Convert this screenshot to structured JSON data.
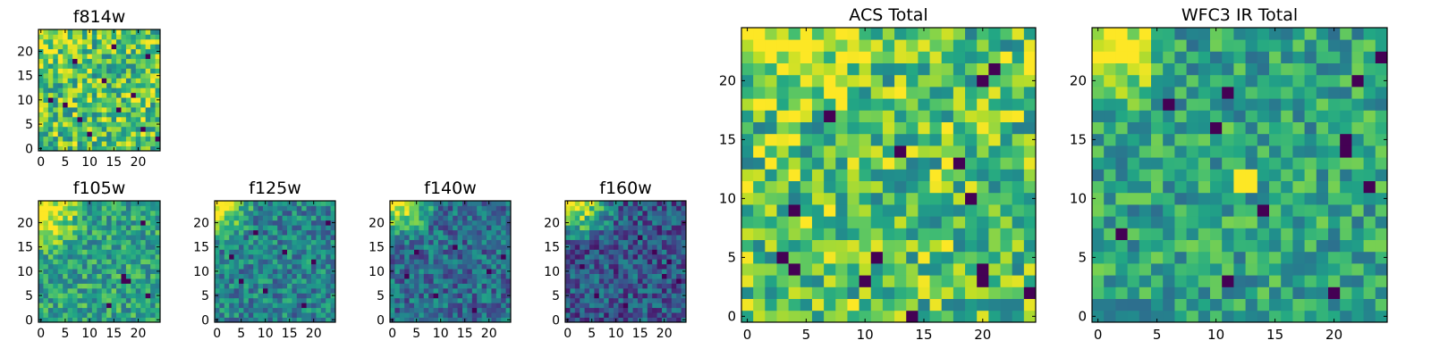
{
  "chart_data": [
    {
      "type": "heatmap",
      "title": "f814w",
      "grid_size": 25,
      "xlim": [
        0,
        24
      ],
      "ylim": [
        0,
        24
      ],
      "xticks": [
        "0",
        "5",
        "10",
        "15",
        "20"
      ],
      "yticks": [
        "0",
        "5",
        "10",
        "15",
        "20"
      ],
      "colormap": "viridis",
      "pattern": "noisy-bright",
      "glow": {
        "x": 0,
        "y": 24,
        "radius": 7,
        "strength": 0.25
      },
      "dark_spots": [
        [
          2,
          10
        ],
        [
          5,
          9
        ],
        [
          7,
          18
        ],
        [
          10,
          3
        ],
        [
          13,
          14
        ],
        [
          16,
          8
        ],
        [
          19,
          11
        ],
        [
          21,
          4
        ],
        [
          22,
          19
        ],
        [
          24,
          2
        ],
        [
          8,
          6
        ],
        [
          15,
          21
        ]
      ],
      "seed": 11
    },
    {
      "type": "heatmap",
      "title": "f105w",
      "grid_size": 25,
      "xlim": [
        0,
        24
      ],
      "ylim": [
        0,
        24
      ],
      "xticks": [
        "0",
        "5",
        "10",
        "15",
        "20"
      ],
      "yticks": [
        "0",
        "5",
        "10",
        "15",
        "20"
      ],
      "colormap": "viridis",
      "pattern": "mid-green",
      "glow": {
        "x": 0,
        "y": 22,
        "radius": 10,
        "strength": 0.5
      },
      "dark_spots": [
        [
          17,
          8
        ],
        [
          17,
          9
        ],
        [
          18,
          8
        ],
        [
          22,
          5
        ],
        [
          21,
          20
        ],
        [
          14,
          3
        ]
      ],
      "seed": 23
    },
    {
      "type": "heatmap",
      "title": "f125w",
      "grid_size": 25,
      "xlim": [
        0,
        24
      ],
      "ylim": [
        0,
        24
      ],
      "xticks": [
        "0",
        "5",
        "10",
        "15",
        "20"
      ],
      "yticks": [
        "0",
        "5",
        "10",
        "15",
        "20"
      ],
      "colormap": "viridis",
      "pattern": "teal",
      "glow": {
        "x": 0,
        "y": 24,
        "radius": 9,
        "strength": 0.6
      },
      "dark_spots": [
        [
          14,
          14
        ],
        [
          20,
          12
        ],
        [
          23,
          20
        ],
        [
          5,
          8
        ],
        [
          10,
          6
        ],
        [
          18,
          3
        ],
        [
          3,
          13
        ],
        [
          8,
          18
        ]
      ],
      "seed": 37
    },
    {
      "type": "heatmap",
      "title": "f140w",
      "grid_size": 25,
      "xlim": [
        0,
        24
      ],
      "ylim": [
        0,
        24
      ],
      "xticks": [
        "0",
        "5",
        "10",
        "15",
        "20"
      ],
      "yticks": [
        "0",
        "5",
        "10",
        "15",
        "20"
      ],
      "colormap": "viridis",
      "pattern": "blue-teal",
      "glow": {
        "x": 1,
        "y": 24,
        "radius": 9,
        "strength": 0.7
      },
      "dark_spots": [
        [
          13,
          15
        ],
        [
          20,
          10
        ],
        [
          23,
          13
        ],
        [
          3,
          9
        ],
        [
          9,
          5
        ],
        [
          17,
          2
        ],
        [
          5,
          14
        ]
      ],
      "seed": 51
    },
    {
      "type": "heatmap",
      "title": "f160w",
      "grid_size": 25,
      "xlim": [
        0,
        24
      ],
      "ylim": [
        0,
        24
      ],
      "xticks": [
        "0",
        "5",
        "10",
        "15",
        "20"
      ],
      "yticks": [
        "0",
        "5",
        "10",
        "15",
        "20"
      ],
      "colormap": "viridis",
      "pattern": "dark-blue",
      "glow": {
        "x": 2,
        "y": 24,
        "radius": 9,
        "strength": 0.75
      },
      "dark_spots": [
        [
          20,
          9
        ],
        [
          21,
          12
        ],
        [
          23,
          8
        ],
        [
          18,
          14
        ],
        [
          6,
          5
        ],
        [
          12,
          3
        ],
        [
          15,
          17
        ],
        [
          3,
          11
        ]
      ],
      "seed": 67
    },
    {
      "type": "heatmap",
      "title": "ACS Total",
      "grid_size": 25,
      "xlim": [
        0,
        24
      ],
      "ylim": [
        0,
        24
      ],
      "xticks": [
        "0",
        "5",
        "10",
        "15",
        "20"
      ],
      "yticks": [
        "0",
        "5",
        "10",
        "15",
        "20"
      ],
      "colormap": "viridis",
      "pattern": "noisy-bright",
      "glow": {
        "x": 5,
        "y": 24,
        "radius": 8,
        "strength": 0.3
      },
      "dark_spots": [
        [
          4,
          9
        ],
        [
          3,
          5
        ],
        [
          4,
          4
        ],
        [
          18,
          13
        ],
        [
          19,
          10
        ],
        [
          20,
          20
        ],
        [
          20,
          4
        ],
        [
          20,
          3
        ],
        [
          11,
          5
        ],
        [
          10,
          3
        ],
        [
          24,
          2
        ],
        [
          14,
          0
        ],
        [
          7,
          17
        ],
        [
          21,
          21
        ],
        [
          13,
          14
        ]
      ],
      "seed": 83
    },
    {
      "type": "heatmap",
      "title": "WFC3 IR Total",
      "grid_size": 25,
      "xlim": [
        0,
        24
      ],
      "ylim": [
        0,
        24
      ],
      "xticks": [
        "0",
        "5",
        "10",
        "15",
        "20"
      ],
      "yticks": [
        "0",
        "5",
        "10",
        "15",
        "20"
      ],
      "colormap": "viridis",
      "pattern": "mid-green",
      "glow": {
        "x": 1,
        "y": 23,
        "radius": 6,
        "strength": 0.55
      },
      "bright_spots": [
        [
          12,
          12
        ],
        [
          13,
          12
        ],
        [
          12,
          11
        ],
        [
          13,
          11
        ]
      ],
      "dark_spots": [
        [
          11,
          19
        ],
        [
          10,
          16
        ],
        [
          21,
          14
        ],
        [
          21,
          15
        ],
        [
          23,
          11
        ],
        [
          22,
          20
        ],
        [
          24,
          22
        ],
        [
          20,
          2
        ],
        [
          11,
          3
        ],
        [
          2,
          7
        ],
        [
          6,
          18
        ],
        [
          14,
          9
        ]
      ],
      "seed": 97
    }
  ]
}
